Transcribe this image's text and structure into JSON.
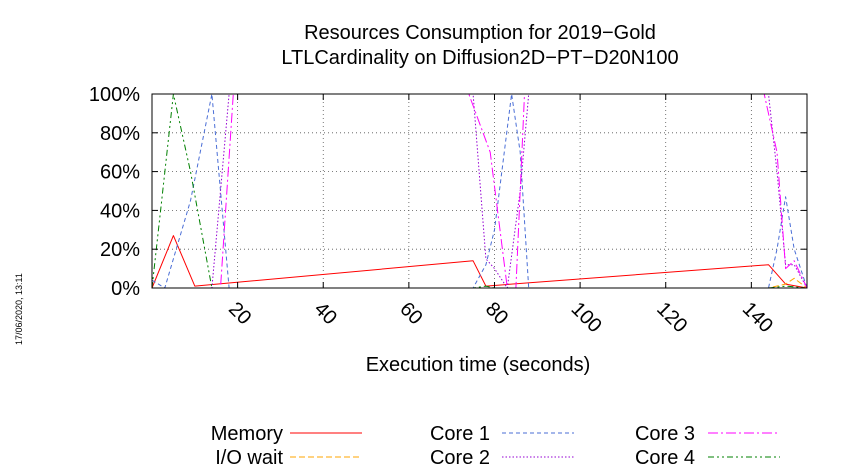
{
  "chart_data": {
    "type": "line",
    "title": "Resources Consumption for 2019−Gold",
    "subtitle": "LTLCardinality on Diffusion2D−PT−D20N100",
    "xlabel": "Execution time (seconds)",
    "ylabel": "",
    "timestamp": "17/06/2020, 13:11",
    "xlim": [
      0,
      153
    ],
    "ylim": [
      0,
      100
    ],
    "x_ticks": [
      20,
      40,
      60,
      80,
      100,
      120,
      140
    ],
    "x_tick_labels": [
      "20",
      "40",
      "60",
      "80",
      "100",
      "120",
      "140"
    ],
    "y_ticks": [
      0,
      20,
      40,
      60,
      80,
      100
    ],
    "y_tick_labels": [
      "0%",
      "20%",
      "40%",
      "60%",
      "80%",
      "100%"
    ],
    "grid": true,
    "legend_position": "bottom",
    "series": [
      {
        "name": "Memory",
        "color": "#ff0000",
        "dash": "solid",
        "points": [
          [
            0,
            0
          ],
          [
            5,
            27
          ],
          [
            10,
            1
          ],
          [
            75,
            14
          ],
          [
            78,
            1
          ],
          [
            144,
            12
          ],
          [
            148,
            2
          ],
          [
            153,
            0
          ]
        ]
      },
      {
        "name": "I/O wait",
        "color": "#ffa500",
        "dash": "dashed",
        "points": [
          [
            0,
            0
          ],
          [
            5,
            0
          ],
          [
            10,
            0
          ],
          [
            75,
            0
          ],
          [
            78,
            0
          ],
          [
            144,
            0
          ],
          [
            148,
            2
          ],
          [
            150,
            5
          ],
          [
            153,
            0
          ]
        ]
      },
      {
        "name": "Core 1",
        "color": "#4a6ed6",
        "dash": "fine-dashed",
        "points": [
          [
            0,
            4
          ],
          [
            3,
            0
          ],
          [
            9,
            45
          ],
          [
            14,
            100
          ],
          [
            16,
            50
          ],
          [
            18,
            0
          ],
          [
            75,
            0
          ],
          [
            78,
            12
          ],
          [
            80,
            30
          ],
          [
            84,
            100
          ],
          [
            86,
            70
          ],
          [
            88,
            0
          ],
          [
            144,
            0
          ],
          [
            146,
            20
          ],
          [
            148,
            47
          ],
          [
            150,
            20
          ],
          [
            153,
            0
          ]
        ]
      },
      {
        "name": "Core 2",
        "color": "#9400d3",
        "dash": "dotted",
        "points": [
          [
            0,
            0
          ],
          [
            14,
            0
          ],
          [
            18,
            100
          ],
          [
            75,
            100
          ],
          [
            78,
            15
          ],
          [
            80,
            10
          ],
          [
            83,
            0
          ],
          [
            86,
            50
          ],
          [
            88,
            100
          ],
          [
            144,
            100
          ],
          [
            146,
            60
          ],
          [
            148,
            12
          ],
          [
            150,
            12
          ],
          [
            153,
            0
          ]
        ]
      },
      {
        "name": "Core 3",
        "color": "#ff00ff",
        "dash": "dash-dot",
        "points": [
          [
            0,
            0
          ],
          [
            16,
            0
          ],
          [
            19,
            100
          ],
          [
            74,
            100
          ],
          [
            79,
            70
          ],
          [
            83,
            0
          ],
          [
            85,
            0
          ],
          [
            87,
            100
          ],
          [
            143,
            100
          ],
          [
            146,
            70
          ],
          [
            148,
            10
          ],
          [
            150,
            14
          ],
          [
            153,
            0
          ]
        ]
      },
      {
        "name": "Core 4",
        "color": "#008000",
        "dash": "dash-dot-dot",
        "points": [
          [
            0,
            0
          ],
          [
            2,
            40
          ],
          [
            5,
            100
          ],
          [
            9,
            60
          ],
          [
            14,
            0
          ],
          [
            18,
            0
          ],
          [
            75,
            0
          ],
          [
            78,
            1
          ],
          [
            80,
            0
          ],
          [
            144,
            0
          ],
          [
            148,
            1
          ],
          [
            153,
            0
          ]
        ]
      }
    ]
  }
}
